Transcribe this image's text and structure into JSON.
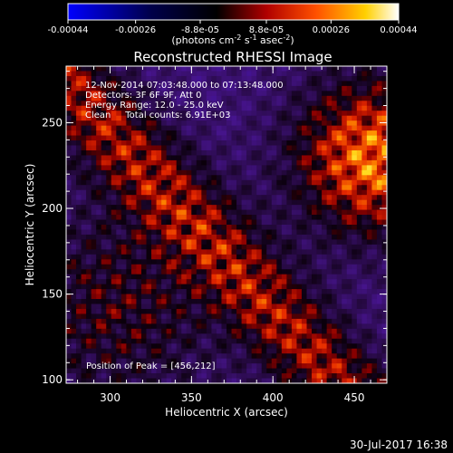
{
  "colorbar": {
    "tick_labels": [
      "-0.00044",
      "-0.00026",
      "-8.8e-05",
      "8.8e-05",
      "0.00026",
      "0.00044"
    ],
    "tick_values": [
      -0.00044,
      -0.00026,
      -8.8e-05,
      8.8e-05,
      0.00026,
      0.00044
    ],
    "range": [
      -0.00044,
      0.00044
    ],
    "units_prefix": "(photons cm",
    "units_exp1": "-2",
    "units_mid1": " s",
    "units_exp2": "-1",
    "units_mid2": " asec",
    "units_exp3": "-2",
    "units_suffix": ")"
  },
  "image": {
    "title": "Reconstructed RHESSI Image",
    "info_lines": [
      "12-Nov-2014 07:03:48.000 to 07:13:48.000",
      "Detectors: 3F 6F 9F, Att 0",
      "Energy Range: 12.0 - 25.0 keV",
      "Clean     Total counts: 6.91E+03"
    ],
    "peak_label": "Position of Peak = [456,212]",
    "xlabel": "Heliocentric X (arcsec)",
    "ylabel": "Heliocentric Y (arcsec)",
    "xlim": [
      273,
      470
    ],
    "ylim": [
      98,
      283
    ],
    "x_ticks": [
      "300",
      "350",
      "400",
      "450"
    ],
    "x_tick_values": [
      300,
      350,
      400,
      450
    ],
    "y_ticks": [
      "100",
      "150",
      "200",
      "250"
    ],
    "y_tick_values": [
      100,
      150,
      200,
      250
    ],
    "colormap": [
      "#0000ff",
      "#000000",
      "#ff0000",
      "#ffff00",
      "#ffffff"
    ]
  },
  "footer": {
    "timestamp": "30-Jul-2017 16:38"
  }
}
